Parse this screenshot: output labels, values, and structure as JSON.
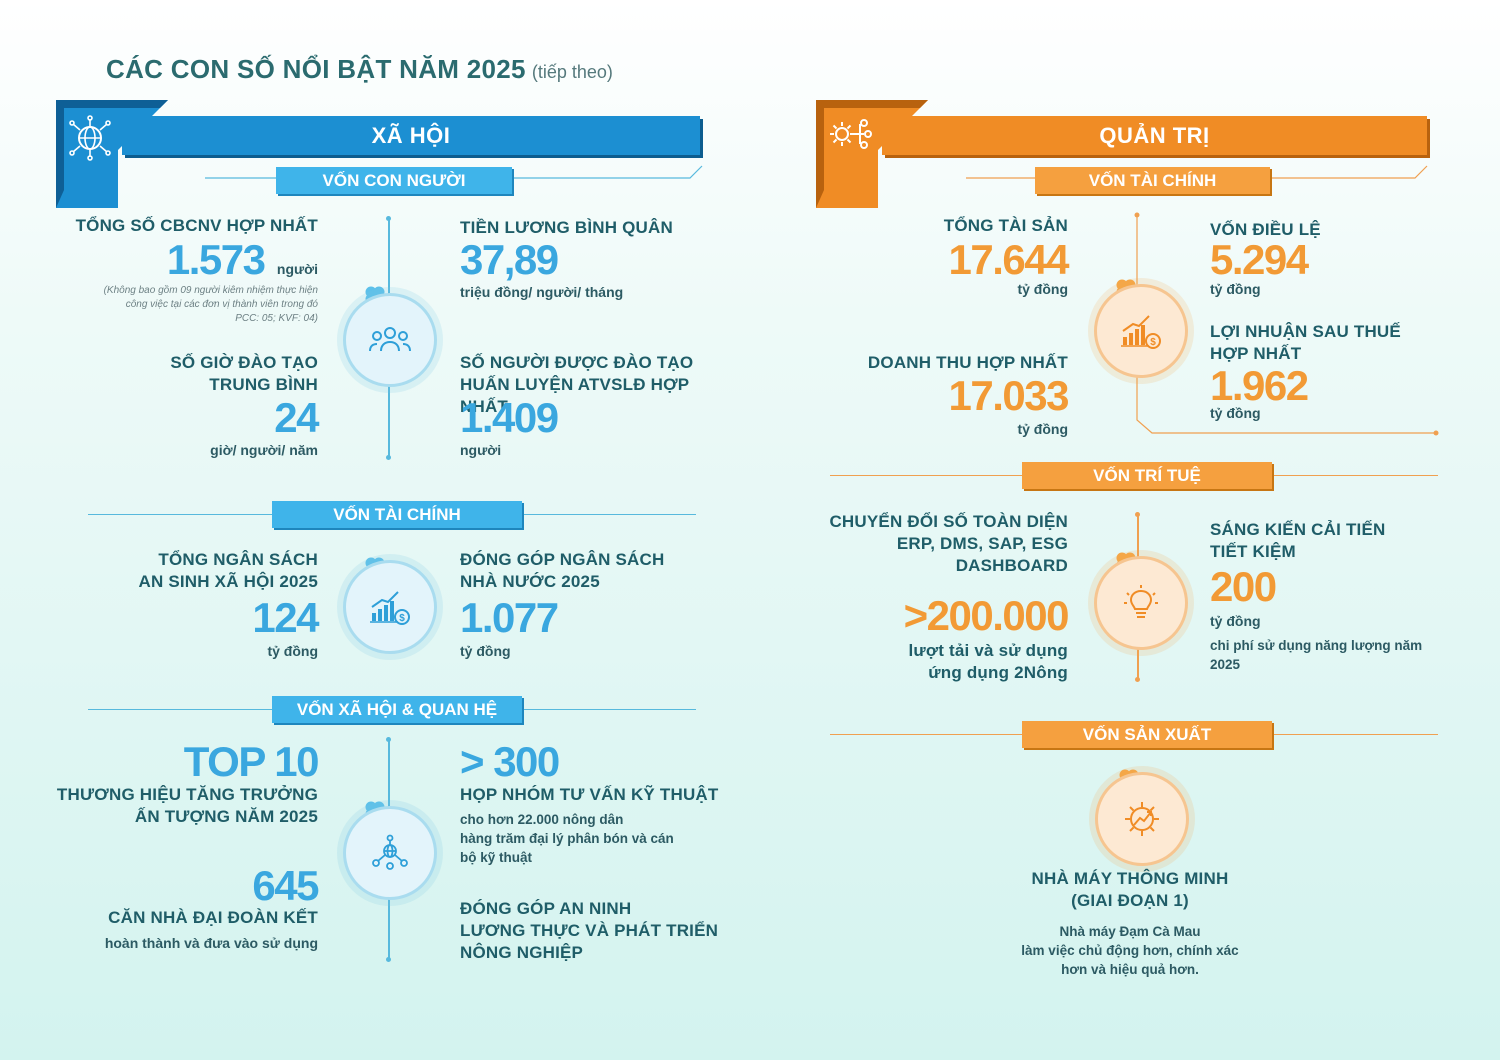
{
  "page_title": "CÁC CON SỐ NỔI BẬT NĂM 2025",
  "page_title_sub": "(tiếp theo)",
  "colors": {
    "blue": "#1c8fd2",
    "light_blue": "#3fb4ea",
    "orange": "#f08c25",
    "teal_text": "#1f5d68"
  },
  "left": {
    "banner": "XÃ HỘI",
    "icon": "globe-network-icon",
    "von_con_nguoi": {
      "title": "VỐN CON NGƯỜI",
      "tong_so_label": "TỔNG SỐ CBCNV HỢP NHẤT",
      "tong_so_value": "1.573",
      "tong_so_unit": "người",
      "tong_so_note": "(Không bao gồm 09 người kiêm nhiệm thực hiện công việc tại các đơn vị thành viên trong đó PCC: 05; KVF: 04)",
      "gio_dao_tao_label_1": "SỐ GIỜ ĐÀO TẠO",
      "gio_dao_tao_label_2": "TRUNG BÌNH",
      "gio_dao_tao_value": "24",
      "gio_dao_tao_unit": "giờ/ người/ năm",
      "luong_label": "TIỀN LƯƠNG BÌNH QUÂN",
      "luong_value": "37,89",
      "luong_unit": "triệu đồng/ người/ tháng",
      "atvsld_label_1": "SỐ NGƯỜI ĐƯỢC ĐÀO TẠO",
      "atvsld_label_2": "HUẤN LUYỆN ATVSLĐ HỢP NHẤT",
      "atvsld_value": "1.409",
      "atvsld_unit": "người"
    },
    "von_tai_chinh": {
      "title": "VỐN TÀI CHÍNH",
      "an_sinh_label_1": "TỔNG NGÂN SÁCH",
      "an_sinh_label_2": "AN SINH XÃ HỘI 2025",
      "an_sinh_value": "124",
      "an_sinh_unit": "tỷ đồng",
      "ngan_sach_label_1": "ĐÓNG GÓP NGÂN SÁCH",
      "ngan_sach_label_2": "NHÀ NƯỚC 2025",
      "ngan_sach_value": "1.077",
      "ngan_sach_unit": "tỷ đồng"
    },
    "von_xa_hoi": {
      "title": "VỐN XÃ HỘI & QUAN HỆ",
      "top_value": "TOP 10",
      "top_label_1": "THƯƠNG HIỆU TĂNG TRƯỞNG",
      "top_label_2": "ẤN TƯỢNG NĂM 2025",
      "nha_value": "645",
      "nha_label": "CĂN NHÀ ĐẠI ĐOÀN KẾT",
      "nha_unit": "hoàn thành và đưa vào sử dụng",
      "hop_value": "> 300",
      "hop_label": "HỌP NHÓM TƯ VẤN KỸ THUẬT",
      "hop_desc_1": "cho hơn 22.000 nông dân",
      "hop_desc_2": "hàng trăm đại lý phân bón và cán",
      "hop_desc_3": "bộ kỹ thuật",
      "an_ninh_1": "ĐÓNG GÓP AN NINH",
      "an_ninh_2": "LƯƠNG THỰC VÀ PHÁT TRIỂN",
      "an_ninh_3": "NÔNG NGHIỆP"
    }
  },
  "right": {
    "banner": "QUẢN TRỊ",
    "icon": "gear-network-icon",
    "von_tai_chinh": {
      "title": "VỐN TÀI CHÍNH",
      "tai_san_label": "TỔNG TÀI SẢN",
      "tai_san_value": "17.644",
      "tai_san_unit": "tỷ đồng",
      "doanh_thu_label": "DOANH THU HỢP NHẤT",
      "doanh_thu_value": "17.033",
      "doanh_thu_unit": "tỷ đồng",
      "dieu_le_label": "VỐN ĐIỀU LỆ",
      "dieu_le_value": "5.294",
      "dieu_le_unit": "tỷ đồng",
      "loi_nhuan_label_1": "LỢI NHUẬN SAU THUẾ",
      "loi_nhuan_label_2": "HỢP NHẤT",
      "loi_nhuan_value": "1.962",
      "loi_nhuan_unit": "tỷ đồng"
    },
    "von_tri_tue": {
      "title": "VỐN TRÍ TUỆ",
      "cds_label_1": "CHUYỂN ĐỔI SỐ TOÀN DIỆN",
      "cds_label_2": "ERP, DMS, SAP, ESG",
      "cds_label_3": "DASHBOARD",
      "cds_value": ">200.000",
      "cds_unit_1": "lượt tải và sử dụng",
      "cds_unit_2": "ứng dụng 2Nông",
      "sang_kien_label_1": "SÁNG KIẾN CẢI TIẾN",
      "sang_kien_label_2": "TIẾT KIỆM",
      "sang_kien_value": "200",
      "sang_kien_unit": "tỷ đồng",
      "sang_kien_desc_1": "chi phí sử dụng năng lượng năm",
      "sang_kien_desc_2": "2025"
    },
    "von_san_xuat": {
      "title": "VỐN SẢN XUẤT",
      "nha_may_label_1": "NHÀ MÁY THÔNG MINH",
      "nha_may_label_2": "(GIAI ĐOẠN 1)",
      "nha_may_desc_1": "Nhà máy Đạm Cà Mau",
      "nha_may_desc_2": "làm việc chủ động hơn, chính xác",
      "nha_may_desc_3": "hơn và hiệu quả hơn."
    }
  }
}
